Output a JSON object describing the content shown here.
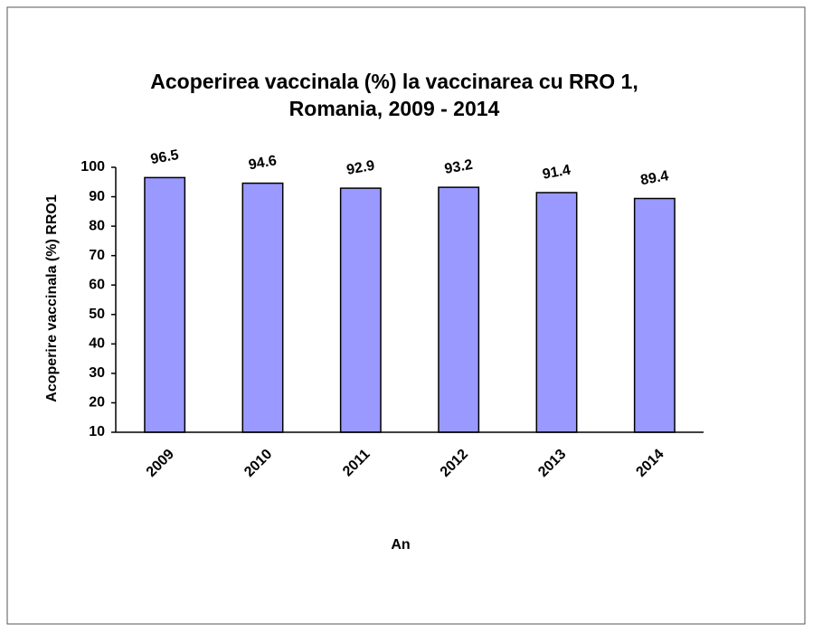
{
  "chart_data": {
    "type": "bar",
    "title": [
      "Acoperirea vaccinala (%) la vaccinarea cu RRO 1,",
      "Romania, 2009 - 2014"
    ],
    "x_label": "An",
    "y_label": "Acoperire vaccinala (%)  RRO1",
    "categories": [
      "2009",
      "2010",
      "2011",
      "2012",
      "2013",
      "2014"
    ],
    "values": [
      96.5,
      94.6,
      92.9,
      93.2,
      91.4,
      89.4
    ],
    "color": "#9999ff",
    "ylim": [
      10,
      100
    ],
    "yticks": [
      10,
      20,
      30,
      40,
      50,
      60,
      70,
      80,
      90,
      100
    ],
    "grid": false
  }
}
